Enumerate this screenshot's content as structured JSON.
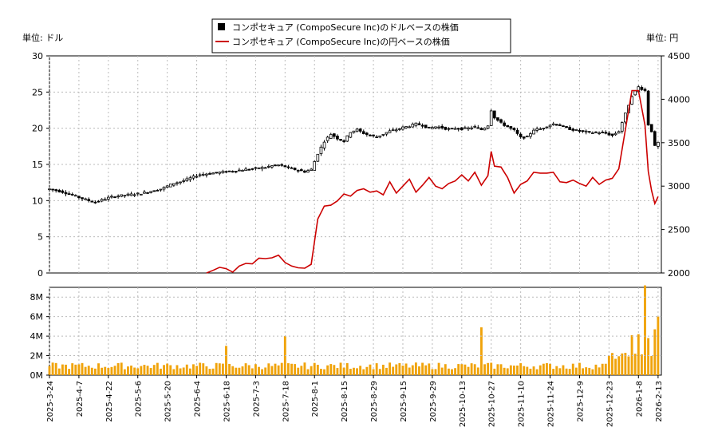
{
  "chart_data": [
    {
      "type": "candlestick+line",
      "legend": [
        {
          "name": "コンポセキュア (CompoSecure Inc)のドルベースの株価",
          "color": "#000000",
          "marker": "square"
        },
        {
          "name": "コンポセキュア (CompoSecure Inc)の円ベースの株価",
          "color": "#cc0000",
          "marker": "line"
        }
      ],
      "legend_placement": "top-center",
      "ylabel_left": "単位: ドル",
      "ylabel_right": "単位: 円",
      "ylim_left": [
        0,
        30
      ],
      "ylim_right": [
        2000,
        4500
      ],
      "yticks_left": [
        0,
        5,
        10,
        15,
        20,
        25,
        30
      ],
      "yticks_right": [
        2000,
        2500,
        3000,
        3500,
        4000,
        4500
      ],
      "grid": true,
      "x_dates": [
        "2025-3-24",
        "2025-4-7",
        "2025-4-22",
        "2025-5-6",
        "2025-5-20",
        "2025-6-4",
        "2025-6-18",
        "2025-7-3",
        "2025-7-18",
        "2025-8-1",
        "2025-8-15",
        "2025-8-29",
        "2025-9-15",
        "2025-9-29",
        "2025-10-13",
        "2025-10-27",
        "2025-11-10",
        "2025-11-24",
        "2025-12-9",
        "2025-12-23",
        "2026-1-8",
        "2026-2-13"
      ],
      "usd_price_series": [
        [
          0,
          11.6
        ],
        [
          2,
          11.4
        ],
        [
          4,
          11.2
        ],
        [
          6,
          10.9
        ],
        [
          8,
          10.6
        ],
        [
          10,
          10.3
        ],
        [
          12,
          10.0
        ],
        [
          14,
          9.8
        ],
        [
          16,
          10.1
        ],
        [
          18,
          10.4
        ],
        [
          20,
          10.6
        ],
        [
          22,
          10.7
        ],
        [
          24,
          10.8
        ],
        [
          26,
          10.9
        ],
        [
          28,
          11.0
        ],
        [
          30,
          11.2
        ],
        [
          32,
          11.4
        ],
        [
          34,
          11.6
        ],
        [
          36,
          12.0
        ],
        [
          38,
          12.4
        ],
        [
          40,
          12.6
        ],
        [
          42,
          12.9
        ],
        [
          44,
          13.3
        ],
        [
          46,
          13.6
        ],
        [
          48,
          13.7
        ],
        [
          50,
          13.8
        ],
        [
          52,
          13.9
        ],
        [
          54,
          14.0
        ],
        [
          56,
          14.1
        ],
        [
          58,
          14.2
        ],
        [
          60,
          14.3
        ],
        [
          62,
          14.4
        ],
        [
          64,
          14.5
        ],
        [
          66,
          14.6
        ],
        [
          68,
          14.8
        ],
        [
          70,
          14.9
        ],
        [
          72,
          14.7
        ],
        [
          74,
          14.4
        ],
        [
          76,
          14.2
        ],
        [
          78,
          14.0
        ],
        [
          80,
          14.3
        ],
        [
          82,
          16.5
        ],
        [
          84,
          18.2
        ],
        [
          86,
          19.2
        ],
        [
          88,
          18.6
        ],
        [
          90,
          18.2
        ],
        [
          92,
          19.5
        ],
        [
          94,
          19.8
        ],
        [
          96,
          19.3
        ],
        [
          98,
          19.0
        ],
        [
          100,
          18.8
        ],
        [
          102,
          19.2
        ],
        [
          104,
          19.6
        ],
        [
          106,
          19.8
        ],
        [
          108,
          20.1
        ],
        [
          110,
          20.3
        ],
        [
          112,
          20.6
        ],
        [
          114,
          20.4
        ],
        [
          116,
          20.0
        ],
        [
          118,
          20.2
        ],
        [
          120,
          20.1
        ],
        [
          122,
          19.8
        ],
        [
          124,
          20.0
        ],
        [
          126,
          19.9
        ],
        [
          128,
          20.0
        ],
        [
          130,
          20.2
        ],
        [
          132,
          19.8
        ],
        [
          134,
          20.4
        ],
        [
          135,
          22.5
        ],
        [
          136,
          21.5
        ],
        [
          138,
          20.7
        ],
        [
          140,
          20.2
        ],
        [
          142,
          19.7
        ],
        [
          144,
          18.7
        ],
        [
          146,
          18.8
        ],
        [
          148,
          19.8
        ],
        [
          150,
          19.9
        ],
        [
          152,
          20.3
        ],
        [
          154,
          20.6
        ],
        [
          156,
          20.4
        ],
        [
          158,
          20.0
        ],
        [
          160,
          19.8
        ],
        [
          162,
          19.6
        ],
        [
          164,
          19.5
        ],
        [
          166,
          19.4
        ],
        [
          168,
          19.4
        ],
        [
          170,
          19.3
        ],
        [
          172,
          19.0
        ],
        [
          174,
          19.6
        ],
        [
          176,
          22.0
        ],
        [
          178,
          24.5
        ],
        [
          180,
          25.7
        ],
        [
          182,
          25.2
        ],
        [
          183,
          20.5
        ],
        [
          184,
          19.6
        ],
        [
          185,
          17.5
        ],
        [
          186,
          18.0
        ]
      ],
      "jpy_price_series": [
        [
          48,
          2000
        ],
        [
          50,
          2030
        ],
        [
          52,
          2065
        ],
        [
          54,
          2050
        ],
        [
          56,
          2010
        ],
        [
          58,
          2080
        ],
        [
          60,
          2110
        ],
        [
          62,
          2105
        ],
        [
          64,
          2170
        ],
        [
          66,
          2165
        ],
        [
          68,
          2175
        ],
        [
          70,
          2205
        ],
        [
          72,
          2120
        ],
        [
          74,
          2080
        ],
        [
          76,
          2060
        ],
        [
          78,
          2055
        ],
        [
          80,
          2100
        ],
        [
          82,
          2620
        ],
        [
          84,
          2770
        ],
        [
          86,
          2780
        ],
        [
          88,
          2830
        ],
        [
          90,
          2910
        ],
        [
          92,
          2885
        ],
        [
          94,
          2950
        ],
        [
          96,
          2970
        ],
        [
          98,
          2930
        ],
        [
          100,
          2945
        ],
        [
          102,
          2900
        ],
        [
          104,
          3050
        ],
        [
          106,
          2920
        ],
        [
          108,
          3000
        ],
        [
          110,
          3080
        ],
        [
          112,
          2930
        ],
        [
          114,
          3010
        ],
        [
          116,
          3100
        ],
        [
          118,
          3000
        ],
        [
          120,
          2970
        ],
        [
          122,
          3030
        ],
        [
          124,
          3060
        ],
        [
          126,
          3130
        ],
        [
          128,
          3060
        ],
        [
          130,
          3160
        ],
        [
          132,
          3010
        ],
        [
          134,
          3120
        ],
        [
          135,
          3400
        ],
        [
          136,
          3230
        ],
        [
          138,
          3220
        ],
        [
          140,
          3100
        ],
        [
          142,
          2920
        ],
        [
          144,
          3020
        ],
        [
          146,
          3060
        ],
        [
          148,
          3160
        ],
        [
          150,
          3150
        ],
        [
          152,
          3150
        ],
        [
          154,
          3160
        ],
        [
          156,
          3050
        ],
        [
          158,
          3040
        ],
        [
          160,
          3070
        ],
        [
          162,
          3030
        ],
        [
          164,
          3000
        ],
        [
          166,
          3100
        ],
        [
          168,
          3020
        ],
        [
          170,
          3070
        ],
        [
          172,
          3090
        ],
        [
          174,
          3200
        ],
        [
          176,
          3650
        ],
        [
          178,
          4100
        ],
        [
          180,
          4100
        ],
        [
          182,
          3700
        ],
        [
          183,
          3170
        ],
        [
          184,
          2950
        ],
        [
          185,
          2800
        ],
        [
          186,
          2880
        ]
      ],
      "volume_ylabel_ticks": [
        "0M",
        "2M",
        "4M",
        "6M",
        "8M"
      ],
      "volume_ylim": [
        0,
        9
      ],
      "volume_units": "M",
      "volume_peak_values_m": {
        "Aug-1": 4.0,
        "Jul-3": 3.0,
        "Nov-3": 4.9,
        "Jan-12": 9.2,
        "Jan-15": 4.7,
        "Feb-13": 6.0
      }
    }
  ]
}
